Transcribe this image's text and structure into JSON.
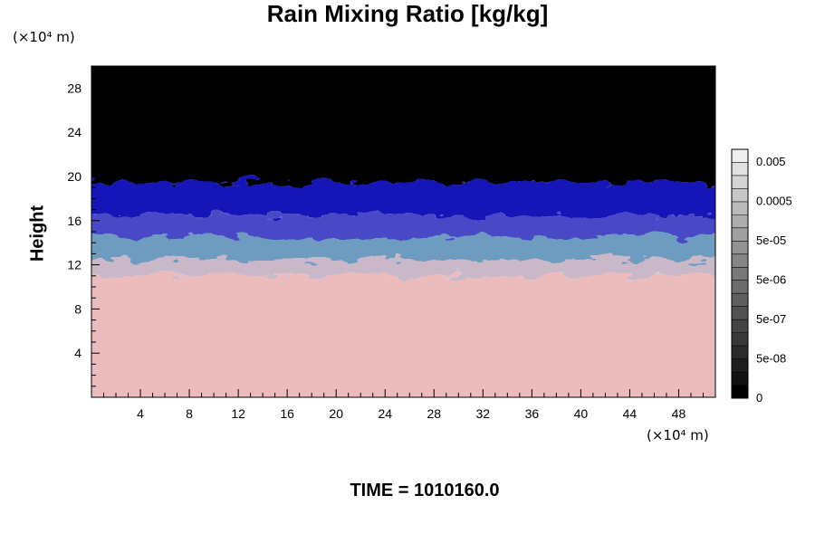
{
  "chart_data": {
    "type": "heatmap",
    "title": "Rain Mixing Ratio [kg/kg]",
    "ylabel": "Height",
    "xlabel": "",
    "x_unit": "(×10⁴ m)",
    "y_unit": "(×10⁴ m)",
    "xlim": [
      0,
      51
    ],
    "ylim": [
      0,
      30
    ],
    "x_ticks": [
      4,
      8,
      12,
      16,
      20,
      24,
      28,
      32,
      36,
      40,
      44,
      48
    ],
    "y_ticks": [
      4,
      8,
      12,
      16,
      20,
      24,
      28
    ],
    "colorbar": {
      "labels": [
        "0.005",
        "0.0005",
        "5e-05",
        "5e-06",
        "5e-07",
        "5e-08",
        "0"
      ],
      "colors": [
        "#000000",
        "#111111",
        "#1e1e1e",
        "#2b2b2b",
        "#383838",
        "#454545",
        "#525252",
        "#5f5f5f",
        "#6c6c6c",
        "#797979",
        "#868686",
        "#939393",
        "#a0a0a0",
        "#adadad",
        "#bababa",
        "#c7c7c7",
        "#d4d4d4",
        "#e1e1e1",
        "#eeeeee"
      ]
    },
    "field_bands": [
      {
        "from": 0,
        "to": 11,
        "color": "#ecbcbc"
      },
      {
        "from": 11,
        "to": 12.5,
        "color": "#c8b8c8"
      },
      {
        "from": 12.5,
        "to": 14.5,
        "color": "#6e9bc0"
      },
      {
        "from": 14.5,
        "to": 16.5,
        "color": "#4848c8"
      },
      {
        "from": 16.5,
        "to": 19.5,
        "color": "#1212b8"
      },
      {
        "from": 19.5,
        "to": 30,
        "color": "#000000"
      }
    ]
  },
  "footer": {
    "time_label": "TIME = 1010160.0"
  }
}
